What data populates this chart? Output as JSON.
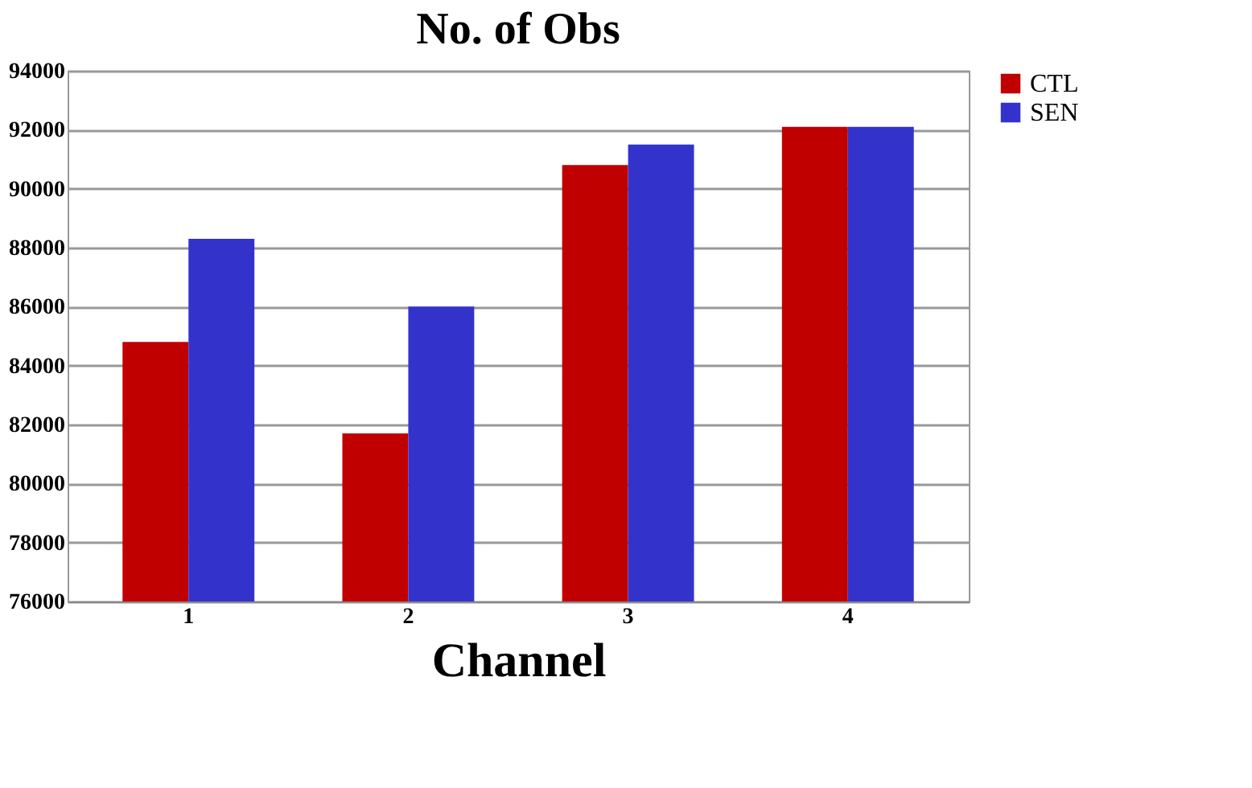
{
  "chart_data": {
    "type": "bar",
    "title": "No. of Obs",
    "xlabel": "Channel",
    "categories": [
      "1",
      "2",
      "3",
      "4"
    ],
    "series": [
      {
        "name": "CTL",
        "color": "#c00000",
        "values": [
          84800,
          81700,
          90800,
          92100
        ]
      },
      {
        "name": "SEN",
        "color": "#3333cc",
        "values": [
          88300,
          86000,
          91500,
          92100
        ]
      }
    ],
    "ylim": [
      76000,
      94000
    ],
    "yticks": [
      76000,
      78000,
      80000,
      82000,
      84000,
      86000,
      88000,
      90000,
      92000,
      94000
    ],
    "grid": "y",
    "legend": "right"
  }
}
